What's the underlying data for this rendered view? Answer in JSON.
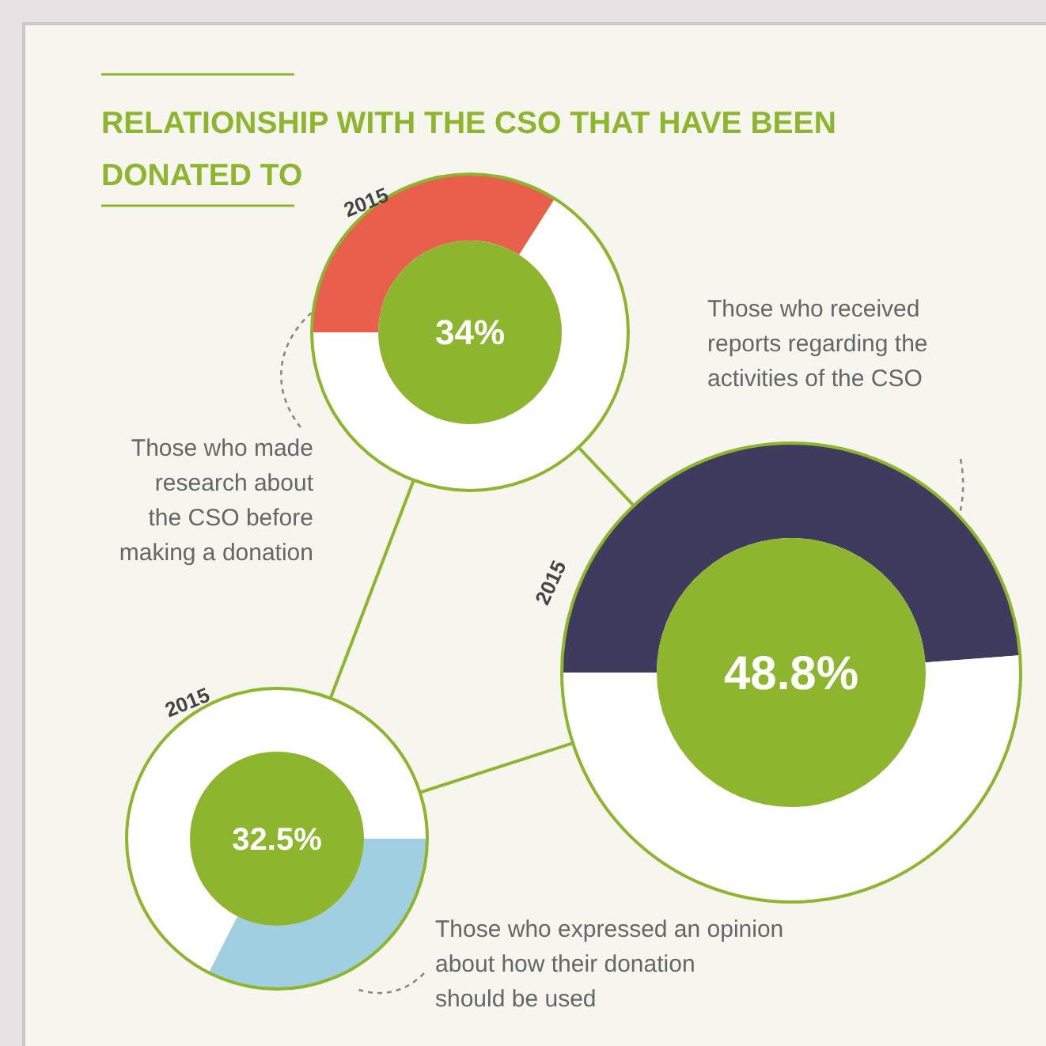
{
  "chart_data": [
    {
      "type": "donut",
      "title": "RELATIONSHIP WITH THE CSO THAT HAVE BEEN DONATED TO",
      "categories": [
        null,
        null
      ],
      "values": [
        34,
        66
      ],
      "colors": [
        "#e8604c",
        "#ffffff"
      ],
      "annotations": [
        "2015",
        "34%",
        "Those who made research about the CSO before making a donation"
      ]
    },
    {
      "type": "donut",
      "categories": [
        null,
        null
      ],
      "values": [
        48.8,
        51.2
      ],
      "colors": [
        "#3e3b5e",
        "#ffffff"
      ],
      "annotations": [
        "2015",
        "48.8%",
        "Those who received reports regarding the activities of the CSO"
      ]
    },
    {
      "type": "donut",
      "categories": [
        null,
        null
      ],
      "values": [
        32.5,
        67.5
      ],
      "colors": [
        "#9fcfe0",
        "#ffffff"
      ],
      "annotations": [
        "2015",
        "32.5%",
        "Those who expressed an opinion about how their donation should be used"
      ]
    }
  ]
}
